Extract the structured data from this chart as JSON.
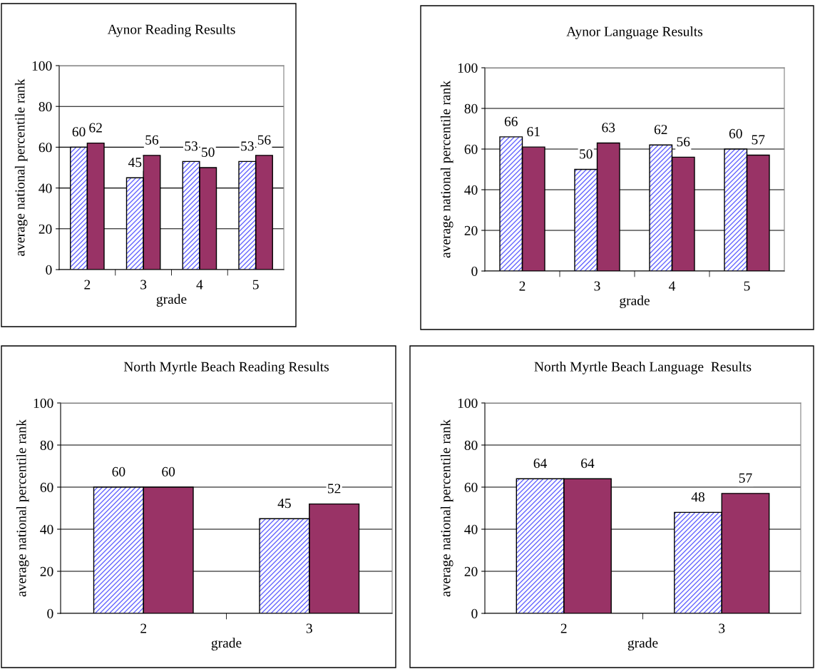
{
  "chart_data": [
    {
      "type": "bar",
      "title": "Aynor Reading Results",
      "xlabel": "grade",
      "ylabel": "average national percentile rank",
      "categories": [
        "2",
        "3",
        "4",
        "5"
      ],
      "ylim": [
        0,
        100
      ],
      "yticks": [
        0,
        20,
        40,
        60,
        80,
        100
      ],
      "grid": "y",
      "data_labels": true,
      "series": [
        {
          "color": "#6666ff",
          "values": [
            60,
            45,
            53,
            53
          ]
        },
        {
          "color": "#993366",
          "values": [
            62,
            56,
            50,
            56
          ]
        }
      ]
    },
    {
      "type": "bar",
      "title": "Aynor Language Results",
      "xlabel": "grade",
      "ylabel": "average national percentile rank",
      "categories": [
        "2",
        "3",
        "4",
        "5"
      ],
      "ylim": [
        0,
        100
      ],
      "yticks": [
        0,
        20,
        40,
        60,
        80,
        100
      ],
      "grid": "y",
      "data_labels": true,
      "series": [
        {
          "color": "#6666ff",
          "values": [
            66,
            50,
            62,
            60
          ]
        },
        {
          "color": "#993366",
          "values": [
            61,
            63,
            56,
            57
          ]
        }
      ]
    },
    {
      "type": "bar",
      "title": "North Myrtle Beach Reading Results",
      "xlabel": "grade",
      "ylabel": "average national percentile rank",
      "categories": [
        "2",
        "3"
      ],
      "ylim": [
        0,
        100
      ],
      "yticks": [
        0,
        20,
        40,
        60,
        80,
        100
      ],
      "grid": "y",
      "data_labels": true,
      "series": [
        {
          "color": "#6666ff",
          "values": [
            60,
            45
          ]
        },
        {
          "color": "#993366",
          "values": [
            60,
            52
          ]
        }
      ]
    },
    {
      "type": "bar",
      "title": "North Myrtle Beach Language  Results",
      "xlabel": "grade",
      "ylabel": "average national percentile rank",
      "categories": [
        "2",
        "3"
      ],
      "ylim": [
        0,
        100
      ],
      "yticks": [
        0,
        20,
        40,
        60,
        80,
        100
      ],
      "grid": "y",
      "data_labels": true,
      "series": [
        {
          "color": "#6666ff",
          "values": [
            64,
            48
          ]
        },
        {
          "color": "#993366",
          "values": [
            64,
            57
          ]
        }
      ]
    }
  ]
}
